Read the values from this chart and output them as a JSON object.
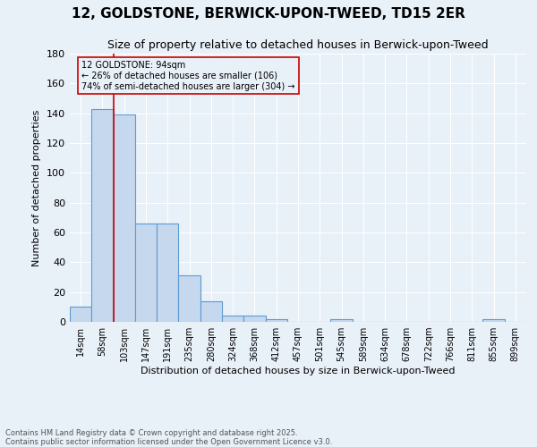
{
  "title": "12, GOLDSTONE, BERWICK-UPON-TWEED, TD15 2ER",
  "subtitle": "Size of property relative to detached houses in Berwick-upon-Tweed",
  "xlabel": "Distribution of detached houses by size in Berwick-upon-Tweed",
  "ylabel": "Number of detached properties",
  "footnote1": "Contains HM Land Registry data © Crown copyright and database right 2025.",
  "footnote2": "Contains public sector information licensed under the Open Government Licence v3.0.",
  "bar_labels": [
    "14sqm",
    "58sqm",
    "103sqm",
    "147sqm",
    "191sqm",
    "235sqm",
    "280sqm",
    "324sqm",
    "368sqm",
    "412sqm",
    "457sqm",
    "501sqm",
    "545sqm",
    "589sqm",
    "634sqm",
    "678sqm",
    "722sqm",
    "766sqm",
    "811sqm",
    "855sqm",
    "899sqm"
  ],
  "bar_values": [
    10,
    143,
    139,
    66,
    66,
    31,
    14,
    4,
    4,
    2,
    0,
    0,
    2,
    0,
    0,
    0,
    0,
    0,
    0,
    2,
    0
  ],
  "bar_color": "#c5d8ed",
  "bar_edge_color": "#5b9bd5",
  "background_color": "#e8f0f8",
  "grid_color": "#ffffff",
  "annotation_text": "12 GOLDSTONE: 94sqm\n← 26% of detached houses are smaller (106)\n74% of semi-detached houses are larger (304) →",
  "annotation_box_edge": "#cc0000",
  "vline_color": "#cc0000",
  "vline_x": 1.5,
  "ylim": [
    0,
    180
  ],
  "yticks": [
    0,
    20,
    40,
    60,
    80,
    100,
    120,
    140,
    160,
    180
  ]
}
